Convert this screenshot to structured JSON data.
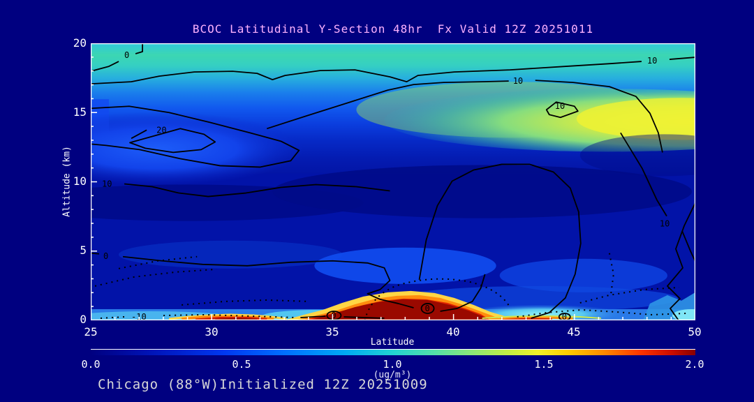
{
  "colors": {
    "background": "#000080",
    "title": "#ffb3ff",
    "axis_text": "#ffffff",
    "caption": "#d8d8d8",
    "frame": "#ffffff",
    "contour_lines": "#000000"
  },
  "chart_data": {
    "type": "heatmap",
    "subtype": "filled-contour latitude-altitude cross section with line-contour overlay",
    "title": "BCOC Latitudinal Y-Section 48hr  Fx Valid 12Z 20251011",
    "xlabel": "Latitude",
    "ylabel": "Altitude (km)",
    "caption": "Chicago (88°W)Initialized 12Z 20251009",
    "xlim": [
      25,
      50
    ],
    "ylim": [
      0,
      20
    ],
    "x_ticks": [
      25,
      30,
      35,
      40,
      45,
      50
    ],
    "x_tick_labels": [
      "25",
      "30",
      "35",
      "40",
      "45",
      "50"
    ],
    "x_minor_step": 1,
    "y_ticks": [
      0,
      5,
      10,
      15,
      20
    ],
    "y_tick_labels": [
      "0",
      "5",
      "10",
      "15",
      "20"
    ],
    "y_minor_step": 1,
    "grid": false,
    "colorbar": {
      "units_label": "(ug/m³)",
      "min": 0.0,
      "max": 2.0,
      "tick_labels": [
        "0.0",
        "0.5",
        "1.0",
        "1.5",
        "2.0"
      ],
      "gradient_stops": [
        "#000080",
        "#0038f0",
        "#0070ff",
        "#22d2d2",
        "#8ce878",
        "#f2f228",
        "#ffcc00",
        "#ff8800",
        "#ff3300",
        "#880000"
      ]
    },
    "fill_field": {
      "description": "BCOC concentration (ug/m3), coarse estimate read from fill colors",
      "lat": [
        25,
        27.5,
        30,
        32.5,
        35,
        37.5,
        40,
        42.5,
        45,
        47.5,
        50
      ],
      "alt_km": [
        0,
        2,
        4,
        6,
        8,
        10,
        12,
        14,
        16,
        18,
        20
      ],
      "row_order": "altitude ascending (first row = 0 km)",
      "values": [
        [
          0.5,
          0.7,
          1.5,
          0.9,
          1.2,
          1.9,
          2.0,
          1.8,
          1.3,
          1.5,
          0.9
        ],
        [
          0.25,
          0.3,
          0.3,
          0.35,
          0.4,
          0.45,
          0.5,
          0.45,
          0.4,
          0.45,
          0.6
        ],
        [
          0.2,
          0.2,
          0.25,
          0.3,
          0.3,
          0.35,
          0.45,
          0.5,
          0.4,
          0.35,
          0.4
        ],
        [
          0.2,
          0.25,
          0.25,
          0.3,
          0.3,
          0.3,
          0.3,
          0.35,
          0.3,
          0.3,
          0.3
        ],
        [
          0.25,
          0.3,
          0.3,
          0.3,
          0.25,
          0.2,
          0.15,
          0.15,
          0.2,
          0.3,
          0.35
        ],
        [
          0.3,
          0.35,
          0.4,
          0.4,
          0.35,
          0.3,
          0.25,
          0.25,
          0.3,
          0.4,
          0.5
        ],
        [
          0.5,
          0.55,
          0.5,
          0.45,
          0.4,
          0.35,
          0.4,
          0.5,
          0.7,
          0.9,
          1.0
        ],
        [
          0.45,
          0.4,
          0.45,
          0.5,
          0.6,
          0.8,
          1.0,
          1.1,
          1.2,
          1.2,
          1.3
        ],
        [
          0.6,
          0.65,
          0.7,
          0.75,
          0.8,
          0.85,
          0.9,
          0.95,
          1.0,
          1.0,
          1.0
        ],
        [
          0.8,
          0.85,
          0.85,
          0.8,
          0.8,
          0.75,
          0.75,
          0.75,
          0.75,
          0.7,
          0.7
        ],
        [
          0.7,
          0.75,
          0.75,
          0.7,
          0.7,
          0.7,
          0.7,
          0.7,
          0.7,
          0.65,
          0.6
        ]
      ]
    },
    "overlay_contours": {
      "levels_seen": [
        -10,
        0,
        10,
        20
      ],
      "negative_style": "dotted",
      "labels": [
        {
          "text": "0",
          "lat": 26.4,
          "alt_km": 19.0
        },
        {
          "text": "10",
          "lat": 48.1,
          "alt_km": 18.6
        },
        {
          "text": "10",
          "lat": 42.7,
          "alt_km": 17.2
        },
        {
          "text": "10",
          "lat": 44.1,
          "alt_km": 15.7
        },
        {
          "text": "20",
          "lat": 27.9,
          "alt_km": 13.7
        },
        {
          "text": "10",
          "lat": 25.6,
          "alt_km": 9.8
        },
        {
          "text": "10",
          "lat": 48.7,
          "alt_km": 7.0
        },
        {
          "text": "0",
          "lat": 25.5,
          "alt_km": 4.6
        },
        {
          "text": "0",
          "lat": 35.1,
          "alt_km": 0.3
        },
        {
          "text": "0",
          "lat": 38.9,
          "alt_km": 0.8
        },
        {
          "text": "-10",
          "lat": 27.0,
          "alt_km": 0.3
        },
        {
          "text": "0",
          "lat": 44.5,
          "alt_km": 0.2
        }
      ]
    }
  }
}
